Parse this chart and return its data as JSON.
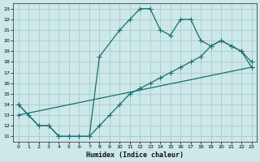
{
  "xlabel": "Humidex (Indice chaleur)",
  "bg_color": "#cce8e8",
  "grid_color": "#aacccc",
  "line_color": "#1a6e6e",
  "xlim": [
    -0.5,
    23.5
  ],
  "ylim": [
    10.5,
    23.5
  ],
  "xticks": [
    0,
    1,
    2,
    3,
    4,
    5,
    6,
    7,
    8,
    9,
    10,
    11,
    12,
    13,
    14,
    15,
    16,
    17,
    18,
    19,
    20,
    21,
    22,
    23
  ],
  "yticks": [
    11,
    12,
    13,
    14,
    15,
    16,
    17,
    18,
    19,
    20,
    21,
    22,
    23
  ],
  "line1_x": [
    0,
    1,
    2,
    3,
    4,
    5,
    6,
    7,
    8,
    10,
    11,
    12,
    13,
    14,
    15,
    16,
    17,
    18,
    19,
    20,
    21,
    22,
    23
  ],
  "line1_y": [
    14,
    13,
    12,
    12,
    11,
    11,
    11,
    11,
    18.5,
    21,
    22,
    23,
    23,
    21,
    20.5,
    22,
    22,
    20,
    19.5,
    20,
    19.5,
    19,
    18
  ],
  "line2_x": [
    0,
    2,
    3,
    4,
    5,
    6,
    7,
    8,
    9,
    10,
    11,
    12,
    13,
    14,
    15,
    16,
    17,
    18,
    19,
    20,
    21,
    22,
    23
  ],
  "line2_y": [
    14,
    12,
    12,
    11,
    11,
    11,
    11,
    12,
    13,
    14,
    15,
    15.5,
    16,
    16.5,
    17,
    17.5,
    18,
    18.5,
    19.5,
    20,
    19.5,
    19,
    17.5
  ],
  "line3_x": [
    0,
    23
  ],
  "line3_y": [
    13,
    17.5
  ]
}
